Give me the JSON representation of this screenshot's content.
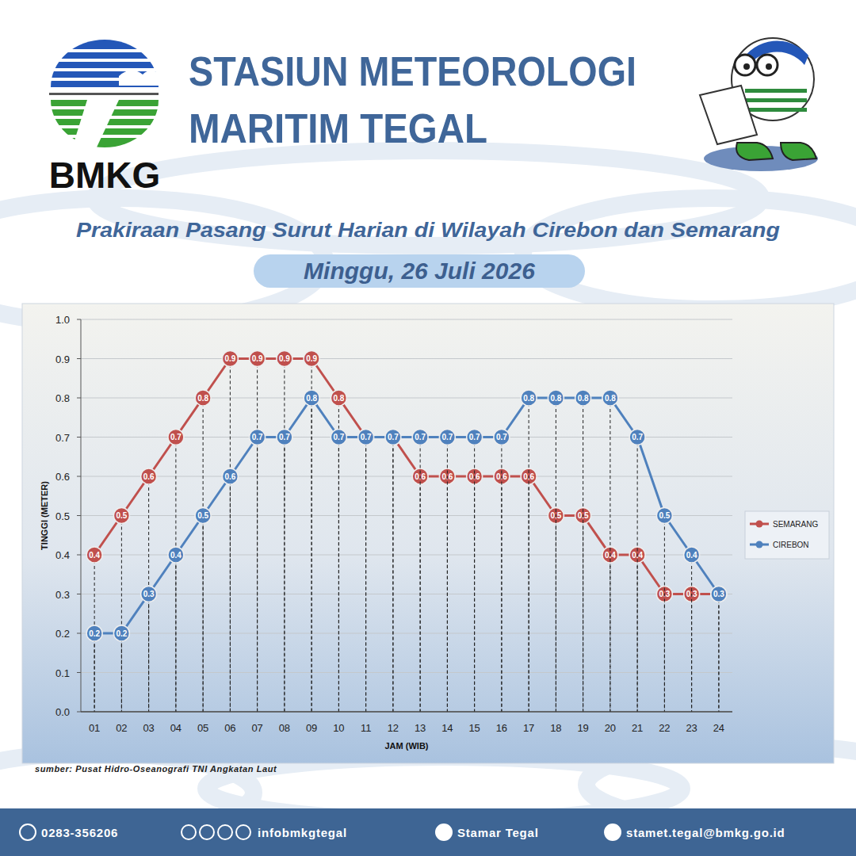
{
  "header": {
    "org": [
      "STASIUN METEOROLOGI",
      "MARITIM TEGAL"
    ],
    "logo": "BMKG"
  },
  "chart_data": {
    "type": "line",
    "title": "Prakiraan Pasang Surut Harian di Wilayah Cirebon dan Semarang",
    "subtitle": "Minggu, 26 Juli 2026",
    "x_label": "JAM (WIB)",
    "y_label": "TINGGI (METER)",
    "categories": [
      "01",
      "02",
      "03",
      "04",
      "05",
      "06",
      "07",
      "08",
      "09",
      "10",
      "11",
      "12",
      "13",
      "14",
      "15",
      "16",
      "17",
      "18",
      "19",
      "20",
      "21",
      "22",
      "23",
      "24"
    ],
    "series": [
      {
        "name": "SEMARANG",
        "color": "#c0504d",
        "values": [
          0.4,
          0.5,
          0.6,
          0.7,
          0.8,
          0.9,
          0.9,
          0.9,
          0.9,
          0.8,
          0.7,
          0.7,
          0.6,
          0.6,
          0.6,
          0.6,
          0.6,
          0.5,
          0.5,
          0.4,
          0.4,
          0.3,
          0.3,
          0.3
        ]
      },
      {
        "name": "CIREBON",
        "color": "#4f81bd",
        "values": [
          0.2,
          0.2,
          0.3,
          0.4,
          0.5,
          0.6,
          0.7,
          0.7,
          0.8,
          0.7,
          0.7,
          0.7,
          0.7,
          0.7,
          0.7,
          0.7,
          0.8,
          0.8,
          0.8,
          0.8,
          0.7,
          0.5,
          0.4,
          0.3
        ]
      }
    ],
    "ylim": [
      0,
      1
    ],
    "yticks": [
      {
        "value": 0,
        "label": "0.0"
      },
      0.1,
      0.2,
      0.3,
      0.4,
      0.5,
      0.6,
      0.7,
      0.8,
      0.9,
      {
        "value": 1,
        "label": "1.0"
      }
    ],
    "grid": true,
    "legend": "right",
    "data_labels": true,
    "marker": "circle"
  },
  "footer": {
    "source": "sumber: Pusat Hidro-Oseanografi TNI Angkatan Laut",
    "contacts": [
      "0283-356206",
      "infobmkgtegal",
      "Stamar Tegal",
      "stamet.tegal@bmkg.go.id"
    ]
  }
}
